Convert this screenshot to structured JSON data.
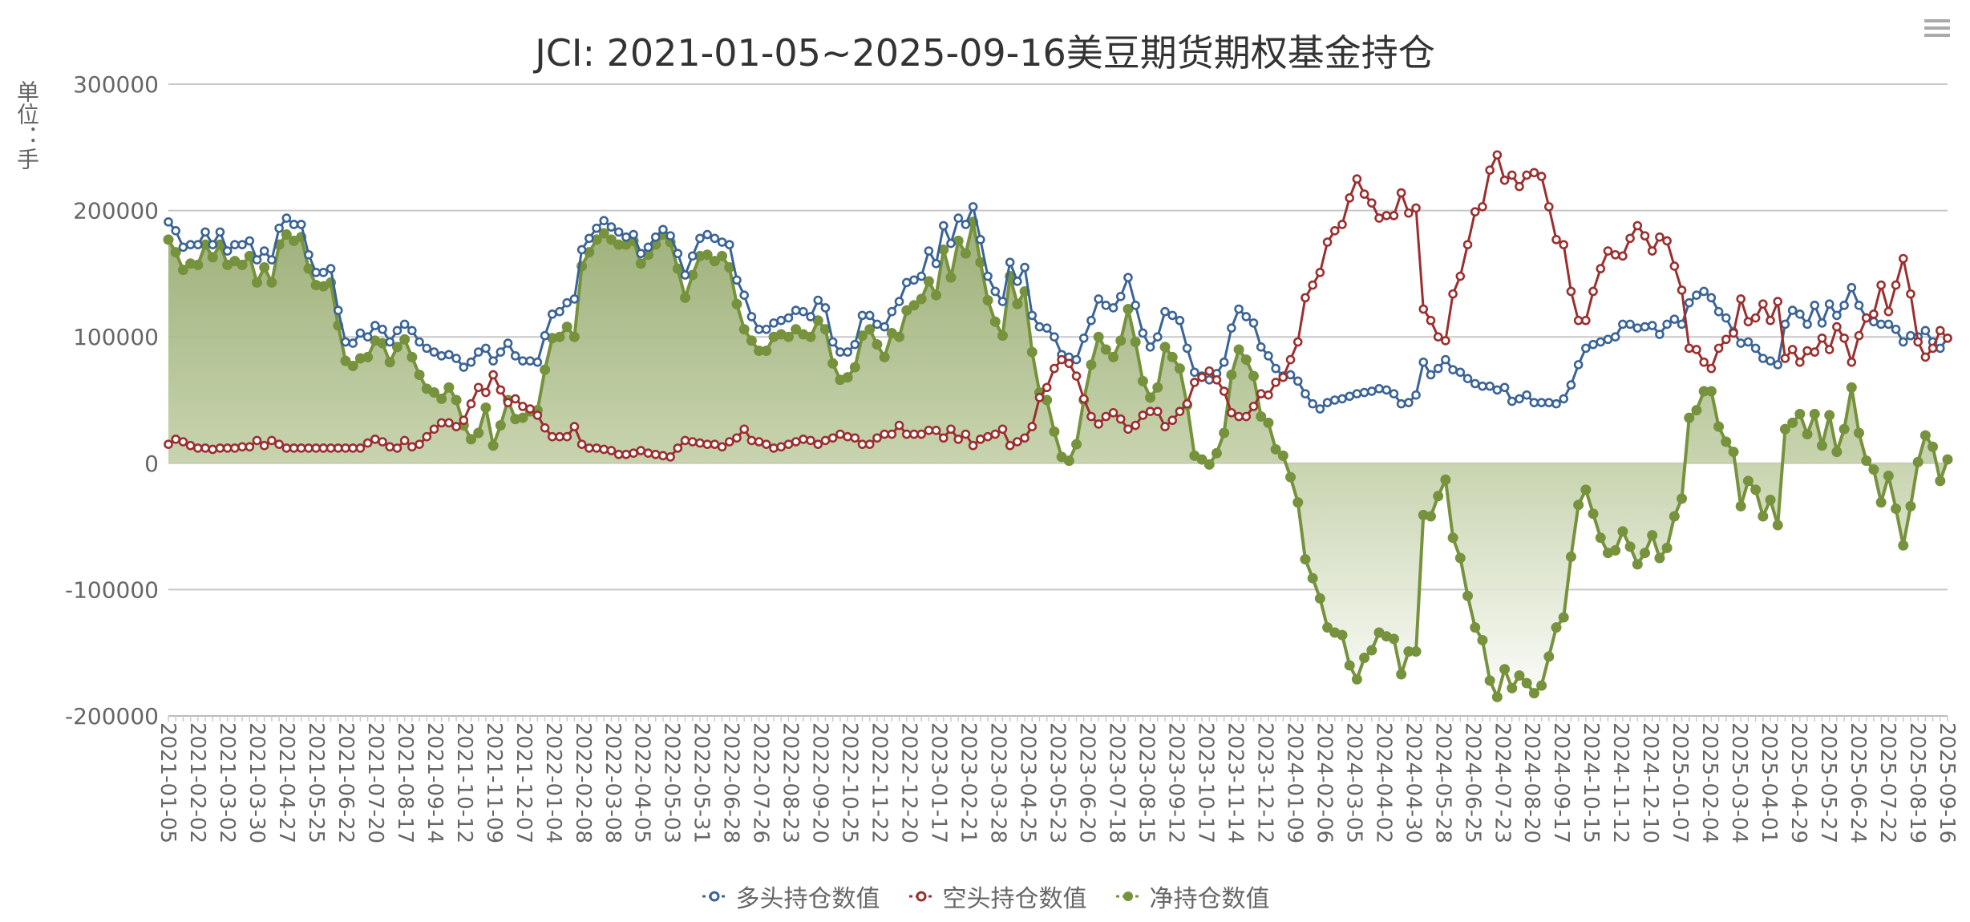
{
  "title": "JCI: 2021-01-05~2025-09-16美豆期货期权基金持仓",
  "toolbox": {
    "icon": "menu-icon"
  },
  "chart_data": {
    "type": "line",
    "title": "JCI: 2021-01-05~2025-09-16美豆期货期权基金持仓",
    "ylabel": "单位：手",
    "ylim": [
      -200000,
      300000
    ],
    "yticks": [
      "300000",
      "200000",
      "100000",
      "0",
      "-100000",
      "-200000"
    ],
    "grid": true,
    "legend_position": "bottom",
    "x_tick_labels": [
      "2021-01-05",
      "2021-02-02",
      "2021-03-02",
      "2021-03-30",
      "2021-04-27",
      "2021-05-25",
      "2021-06-22",
      "2021-07-20",
      "2021-08-17",
      "2021-09-14",
      "2021-10-12",
      "2021-11-09",
      "2021-12-07",
      "2022-01-04",
      "2022-02-08",
      "2022-03-08",
      "2022-04-05",
      "2022-05-03",
      "2022-05-31",
      "2022-06-28",
      "2022-07-26",
      "2022-08-23",
      "2022-09-20",
      "2022-10-25",
      "2022-11-22",
      "2022-12-20",
      "2023-01-17",
      "2023-02-21",
      "2023-03-28",
      "2023-04-25",
      "2023-05-23",
      "2023-06-20",
      "2023-07-18",
      "2023-08-15",
      "2023-09-12",
      "2023-10-17",
      "2023-11-14",
      "2023-12-12",
      "2024-01-09",
      "2024-02-06",
      "2024-03-05",
      "2024-04-02",
      "2024-04-30",
      "2024-05-28",
      "2024-06-25",
      "2024-07-23",
      "2024-08-20",
      "2024-09-17",
      "2024-10-15",
      "2024-11-12",
      "2024-12-10",
      "2025-01-07",
      "2025-02-04",
      "2025-03-04",
      "2025-04-01",
      "2025-04-29",
      "2025-05-27",
      "2025-06-24",
      "2025-07-22",
      "2025-08-19",
      "2025-09-16"
    ],
    "series": [
      {
        "name": "多头持仓数值",
        "color": "#3a6396",
        "marker": "hollow-circle",
        "values": [
          191000,
          184000,
          171000,
          173000,
          173000,
          183000,
          173000,
          183000,
          168000,
          173000,
          173000,
          176000,
          161000,
          168000,
          161000,
          186000,
          194000,
          189000,
          189000,
          165000,
          151000,
          151000,
          154000,
          121000,
          96000,
          95000,
          103000,
          100000,
          109000,
          106000,
          96000,
          105000,
          110000,
          105000,
          96000,
          91000,
          88000,
          85000,
          86000,
          83000,
          76000,
          80000,
          88000,
          91000,
          81000,
          88000,
          95000,
          85000,
          81000,
          81000,
          80000,
          101000,
          118000,
          120000,
          127000,
          130000,
          169000,
          178000,
          186000,
          192000,
          187000,
          183000,
          179000,
          181000,
          166000,
          171000,
          179000,
          185000,
          180000,
          166000,
          149000,
          164000,
          178000,
          181000,
          178000,
          175000,
          173000,
          145000,
          133000,
          116000,
          106000,
          106000,
          111000,
          113000,
          115000,
          121000,
          120000,
          116000,
          129000,
          123000,
          96000,
          88000,
          88000,
          94000,
          117000,
          117000,
          110000,
          108000,
          120000,
          128000,
          143000,
          145000,
          148000,
          168000,
          158000,
          188000,
          174000,
          194000,
          189000,
          203000,
          177000,
          148000,
          136000,
          128000,
          159000,
          144000,
          155000,
          117000,
          108000,
          107000,
          100000,
          86000,
          84000,
          82000,
          99000,
          113000,
          130000,
          125000,
          123000,
          132000,
          147000,
          125000,
          103000,
          92000,
          100000,
          120000,
          117000,
          113000,
          91000,
          72000,
          69000,
          66000,
          71000,
          80000,
          107000,
          122000,
          116000,
          111000,
          92000,
          85000,
          75000,
          69000,
          70000,
          65000,
          55000,
          47000,
          43000,
          48000,
          50000,
          51000,
          53000,
          55000,
          56000,
          57000,
          59000,
          58000,
          55000,
          47000,
          48000,
          54000,
          80000,
          70000,
          75000,
          82000,
          74000,
          72000,
          67000,
          63000,
          61000,
          61000,
          58000,
          60000,
          49000,
          51000,
          54000,
          48000,
          48000,
          48000,
          47000,
          51000,
          62000,
          78000,
          91000,
          94000,
          96000,
          98000,
          100000,
          110000,
          110000,
          107000,
          108000,
          109000,
          102000,
          110000,
          114000,
          110000,
          127000,
          133000,
          136000,
          131000,
          120000,
          115000,
          104000,
          95000,
          96000,
          91000,
          83000,
          81000,
          78000,
          110000,
          121000,
          118000,
          110000,
          125000,
          111000,
          126000,
          117000,
          125000,
          139000,
          125000,
          115000,
          112000,
          110000,
          110000,
          106000,
          96000,
          101000,
          100000,
          105000,
          96000,
          91000,
          99000
        ]
      },
      {
        "name": "空头持仓数值",
        "color": "#9b2f2f",
        "marker": "hollow-circle",
        "values": [
          15000,
          19000,
          17000,
          14000,
          12000,
          12000,
          11000,
          12000,
          12000,
          12000,
          13000,
          13000,
          18000,
          14000,
          18000,
          15000,
          12000,
          12000,
          12000,
          12000,
          12000,
          12000,
          12000,
          12000,
          12000,
          12000,
          12000,
          16000,
          19000,
          17000,
          13000,
          12000,
          18000,
          13000,
          15000,
          21000,
          27000,
          32000,
          32000,
          29000,
          34000,
          47000,
          60000,
          56000,
          70000,
          58000,
          48000,
          51000,
          45000,
          43000,
          38000,
          28000,
          21000,
          21000,
          21000,
          29000,
          15000,
          12000,
          12000,
          11000,
          10000,
          7000,
          7000,
          8000,
          10000,
          8000,
          7000,
          6000,
          5000,
          12000,
          18000,
          17000,
          16000,
          15000,
          15000,
          13000,
          17000,
          20000,
          27000,
          18000,
          17000,
          15000,
          12000,
          13000,
          15000,
          17000,
          19000,
          18000,
          15000,
          18000,
          20000,
          23000,
          21000,
          20000,
          15000,
          15000,
          20000,
          23000,
          23000,
          30000,
          23000,
          23000,
          23000,
          26000,
          26000,
          20000,
          27000,
          19000,
          23000,
          14000,
          19000,
          21000,
          23000,
          27000,
          14000,
          17000,
          20000,
          29000,
          52000,
          60000,
          75000,
          82000,
          79000,
          69000,
          51000,
          37000,
          31000,
          37000,
          40000,
          35000,
          27000,
          30000,
          38000,
          41000,
          41000,
          29000,
          34000,
          41000,
          47000,
          64000,
          68000,
          73000,
          66000,
          57000,
          40000,
          37000,
          37000,
          45000,
          55000,
          54000,
          64000,
          68000,
          82000,
          96000,
          131000,
          141000,
          151000,
          175000,
          184000,
          189000,
          210000,
          225000,
          213000,
          206000,
          194000,
          196000,
          196000,
          214000,
          198000,
          202000,
          122000,
          113000,
          100000,
          97000,
          134000,
          148000,
          173000,
          199000,
          203000,
          232000,
          244000,
          224000,
          228000,
          219000,
          228000,
          230000,
          227000,
          203000,
          177000,
          173000,
          136000,
          113000,
          113000,
          136000,
          154000,
          168000,
          165000,
          164000,
          178000,
          188000,
          180000,
          168000,
          179000,
          176000,
          156000,
          137000,
          91000,
          90000,
          80000,
          75000,
          91000,
          98000,
          103000,
          130000,
          112000,
          115000,
          126000,
          113000,
          128000,
          83000,
          90000,
          80000,
          89000,
          88000,
          99000,
          90000,
          108000,
          99000,
          80000,
          101000,
          115000,
          118000,
          141000,
          120000,
          141000,
          162000,
          134000,
          96000,
          84000,
          91000,
          105000,
          99000
        ]
      },
      {
        "name": "净持仓数值",
        "color": "#76923c",
        "marker": "filled-circle",
        "area": true,
        "values": [
          177000,
          167000,
          153000,
          158000,
          157000,
          173000,
          163000,
          173000,
          157000,
          160000,
          157000,
          164000,
          143000,
          155000,
          143000,
          173000,
          181000,
          176000,
          179000,
          154000,
          141000,
          140000,
          143000,
          109000,
          81000,
          77000,
          83000,
          84000,
          97000,
          95000,
          80000,
          92000,
          98000,
          84000,
          70000,
          59000,
          56000,
          51000,
          60000,
          50000,
          30000,
          19000,
          24000,
          44000,
          14000,
          30000,
          50000,
          35000,
          36000,
          41000,
          42000,
          74000,
          99000,
          100000,
          108000,
          100000,
          156000,
          167000,
          177000,
          182000,
          177000,
          173000,
          173000,
          176000,
          158000,
          165000,
          173000,
          181000,
          175000,
          154000,
          131000,
          149000,
          164000,
          165000,
          160000,
          164000,
          155000,
          126000,
          106000,
          97000,
          89000,
          89000,
          100000,
          102000,
          100000,
          106000,
          102000,
          100000,
          113000,
          106000,
          79000,
          66000,
          68000,
          76000,
          101000,
          106000,
          94000,
          84000,
          103000,
          100000,
          121000,
          125000,
          130000,
          144000,
          133000,
          169000,
          147000,
          176000,
          166000,
          191000,
          159000,
          129000,
          112000,
          101000,
          148000,
          126000,
          136000,
          88000,
          56000,
          50000,
          25000,
          5000,
          2000,
          15000,
          50000,
          78000,
          100000,
          90000,
          84000,
          97000,
          122000,
          96000,
          65000,
          52000,
          60000,
          92000,
          84000,
          75000,
          46000,
          6000,
          3000,
          -1000,
          8000,
          24000,
          70000,
          90000,
          82000,
          69000,
          37000,
          32000,
          11000,
          6000,
          -11000,
          -31000,
          -76000,
          -91000,
          -107000,
          -130000,
          -134000,
          -136000,
          -160000,
          -171000,
          -154000,
          -148000,
          -134000,
          -137000,
          -139000,
          -167000,
          -149000,
          -149000,
          -41000,
          -42000,
          -26000,
          -13000,
          -59000,
          -75000,
          -105000,
          -130000,
          -140000,
          -172000,
          -185000,
          -163000,
          -178000,
          -168000,
          -174000,
          -182000,
          -176000,
          -153000,
          -130000,
          -122000,
          -74000,
          -33000,
          -21000,
          -40000,
          -59000,
          -71000,
          -69000,
          -54000,
          -66000,
          -80000,
          -71000,
          -57000,
          -75000,
          -67000,
          -42000,
          -28000,
          36000,
          42000,
          57000,
          57000,
          29000,
          17000,
          9000,
          -34000,
          -14000,
          -21000,
          -42000,
          -29000,
          -49000,
          27000,
          32000,
          39000,
          23000,
          39000,
          14000,
          38000,
          9000,
          27000,
          60000,
          24000,
          2000,
          -5000,
          -31000,
          -10000,
          -36000,
          -65000,
          -34000,
          1000,
          22000,
          13000,
          -14000,
          3000
        ]
      }
    ]
  }
}
